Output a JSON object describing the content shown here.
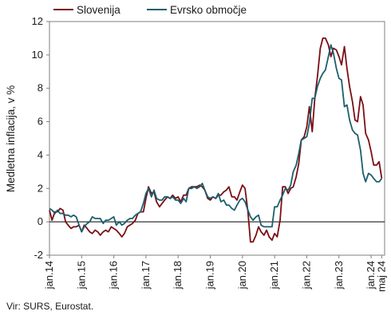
{
  "chart_data": {
    "type": "line",
    "ylabel": "Medletna inflacija, v %",
    "ylim": [
      -2,
      12
    ],
    "yticks": [
      -2,
      0,
      2,
      4,
      6,
      8,
      10,
      12
    ],
    "xlim": [
      2014.0,
      2024.42
    ],
    "xticks": [
      {
        "label": "jan.14",
        "x": 2014.0
      },
      {
        "label": "jan.15",
        "x": 2015.0
      },
      {
        "label": "jan.16",
        "x": 2016.0
      },
      {
        "label": "jan.17",
        "x": 2017.0
      },
      {
        "label": "jan.18",
        "x": 2018.0
      },
      {
        "label": "jan.19",
        "x": 2019.0
      },
      {
        "label": "jan.20",
        "x": 2020.0
      },
      {
        "label": "jan.21",
        "x": 2021.0
      },
      {
        "label": "jan.22",
        "x": 2022.0
      },
      {
        "label": "jan.23",
        "x": 2023.0
      },
      {
        "label": "jan.24",
        "x": 2024.0
      },
      {
        "label": "maj 24",
        "x": 2024.33
      }
    ],
    "grid": false,
    "legend_position": "top",
    "colors": {
      "slovenija": "#7a0f14",
      "evro": "#1b5f6e",
      "zero_line": "#000000"
    },
    "series": [
      {
        "name": "Slovenija",
        "points": [
          [
            2014.0,
            0.7
          ],
          [
            2014.08,
            0.1
          ],
          [
            2014.17,
            0.6
          ],
          [
            2014.25,
            0.6
          ],
          [
            2014.33,
            0.8
          ],
          [
            2014.42,
            0.7
          ],
          [
            2014.5,
            0.0
          ],
          [
            2014.58,
            -0.2
          ],
          [
            2014.67,
            -0.4
          ],
          [
            2014.75,
            -0.3
          ],
          [
            2014.83,
            -0.3
          ],
          [
            2014.92,
            -0.2
          ],
          [
            2015.0,
            -0.6
          ],
          [
            2015.08,
            -0.2
          ],
          [
            2015.17,
            -0.4
          ],
          [
            2015.25,
            -0.6
          ],
          [
            2015.33,
            -0.7
          ],
          [
            2015.42,
            -0.5
          ],
          [
            2015.5,
            -0.6
          ],
          [
            2015.58,
            -0.8
          ],
          [
            2015.67,
            -0.6
          ],
          [
            2015.75,
            -0.5
          ],
          [
            2015.83,
            -0.6
          ],
          [
            2015.92,
            -0.3
          ],
          [
            2016.0,
            -0.4
          ],
          [
            2016.08,
            -0.5
          ],
          [
            2016.17,
            -0.7
          ],
          [
            2016.25,
            -0.9
          ],
          [
            2016.33,
            -0.7
          ],
          [
            2016.42,
            -0.3
          ],
          [
            2016.5,
            -0.2
          ],
          [
            2016.58,
            -0.1
          ],
          [
            2016.67,
            0.1
          ],
          [
            2016.75,
            0.5
          ],
          [
            2016.83,
            0.6
          ],
          [
            2016.92,
            0.6
          ],
          [
            2017.0,
            1.4
          ],
          [
            2017.08,
            2.1
          ],
          [
            2017.17,
            1.7
          ],
          [
            2017.25,
            1.8
          ],
          [
            2017.33,
            1.2
          ],
          [
            2017.42,
            0.9
          ],
          [
            2017.5,
            1.1
          ],
          [
            2017.58,
            1.3
          ],
          [
            2017.67,
            1.5
          ],
          [
            2017.75,
            1.4
          ],
          [
            2017.83,
            1.6
          ],
          [
            2017.92,
            1.4
          ],
          [
            2018.0,
            1.5
          ],
          [
            2018.08,
            1.2
          ],
          [
            2018.17,
            1.6
          ],
          [
            2018.25,
            1.6
          ],
          [
            2018.33,
            2.0
          ],
          [
            2018.42,
            2.1
          ],
          [
            2018.5,
            2.1
          ],
          [
            2018.58,
            2.1
          ],
          [
            2018.67,
            2.2
          ],
          [
            2018.75,
            2.1
          ],
          [
            2018.83,
            1.9
          ],
          [
            2018.92,
            1.4
          ],
          [
            2019.0,
            1.3
          ],
          [
            2019.08,
            1.5
          ],
          [
            2019.17,
            1.4
          ],
          [
            2019.25,
            1.6
          ],
          [
            2019.33,
            1.6
          ],
          [
            2019.42,
            1.8
          ],
          [
            2019.5,
            1.9
          ],
          [
            2019.58,
            2.1
          ],
          [
            2019.67,
            1.5
          ],
          [
            2019.75,
            1.5
          ],
          [
            2019.83,
            1.3
          ],
          [
            2019.92,
            1.8
          ],
          [
            2020.0,
            2.2
          ],
          [
            2020.08,
            2.0
          ],
          [
            2020.17,
            0.6
          ],
          [
            2020.25,
            -1.2
          ],
          [
            2020.33,
            -1.2
          ],
          [
            2020.42,
            -0.8
          ],
          [
            2020.5,
            -0.3
          ],
          [
            2020.58,
            -0.6
          ],
          [
            2020.67,
            -0.8
          ],
          [
            2020.75,
            -0.5
          ],
          [
            2020.83,
            -0.9
          ],
          [
            2020.92,
            -1.1
          ],
          [
            2021.0,
            -0.7
          ],
          [
            2021.08,
            -0.9
          ],
          [
            2021.17,
            0.1
          ],
          [
            2021.25,
            2.1
          ],
          [
            2021.33,
            2.1
          ],
          [
            2021.42,
            1.7
          ],
          [
            2021.5,
            2.0
          ],
          [
            2021.58,
            2.1
          ],
          [
            2021.67,
            2.7
          ],
          [
            2021.75,
            3.5
          ],
          [
            2021.83,
            4.9
          ],
          [
            2021.92,
            5.1
          ],
          [
            2022.0,
            5.7
          ],
          [
            2022.08,
            6.9
          ],
          [
            2022.17,
            5.4
          ],
          [
            2022.25,
            7.4
          ],
          [
            2022.33,
            8.7
          ],
          [
            2022.42,
            10.4
          ],
          [
            2022.5,
            11.0
          ],
          [
            2022.58,
            11.0
          ],
          [
            2022.67,
            10.6
          ],
          [
            2022.75,
            9.9
          ],
          [
            2022.83,
            10.4
          ],
          [
            2022.92,
            10.3
          ],
          [
            2023.0,
            9.9
          ],
          [
            2023.08,
            9.4
          ],
          [
            2023.17,
            10.5
          ],
          [
            2023.25,
            9.2
          ],
          [
            2023.33,
            8.1
          ],
          [
            2023.42,
            7.2
          ],
          [
            2023.5,
            6.1
          ],
          [
            2023.58,
            6.0
          ],
          [
            2023.67,
            7.5
          ],
          [
            2023.75,
            7.0
          ],
          [
            2023.83,
            5.3
          ],
          [
            2023.92,
            4.9
          ],
          [
            2024.0,
            4.2
          ],
          [
            2024.08,
            3.4
          ],
          [
            2024.17,
            3.4
          ],
          [
            2024.25,
            3.6
          ],
          [
            2024.33,
            2.6
          ]
        ]
      },
      {
        "name": "Evrsko območje",
        "points": [
          [
            2014.0,
            0.8
          ],
          [
            2014.08,
            0.7
          ],
          [
            2014.17,
            0.5
          ],
          [
            2014.25,
            0.7
          ],
          [
            2014.33,
            0.5
          ],
          [
            2014.42,
            0.5
          ],
          [
            2014.5,
            0.4
          ],
          [
            2014.58,
            0.4
          ],
          [
            2014.67,
            0.3
          ],
          [
            2014.75,
            0.4
          ],
          [
            2014.83,
            0.3
          ],
          [
            2014.92,
            -0.2
          ],
          [
            2015.0,
            -0.6
          ],
          [
            2015.08,
            -0.3
          ],
          [
            2015.17,
            -0.1
          ],
          [
            2015.25,
            0.0
          ],
          [
            2015.33,
            0.3
          ],
          [
            2015.42,
            0.2
          ],
          [
            2015.5,
            0.2
          ],
          [
            2015.58,
            0.2
          ],
          [
            2015.67,
            -0.1
          ],
          [
            2015.75,
            0.1
          ],
          [
            2015.83,
            0.1
          ],
          [
            2015.92,
            0.2
          ],
          [
            2016.0,
            0.3
          ],
          [
            2016.08,
            -0.2
          ],
          [
            2016.17,
            0.0
          ],
          [
            2016.25,
            -0.2
          ],
          [
            2016.33,
            -0.1
          ],
          [
            2016.42,
            0.1
          ],
          [
            2016.5,
            0.2
          ],
          [
            2016.58,
            0.2
          ],
          [
            2016.67,
            0.4
          ],
          [
            2016.75,
            0.5
          ],
          [
            2016.83,
            0.6
          ],
          [
            2016.92,
            1.1
          ],
          [
            2017.0,
            1.7
          ],
          [
            2017.08,
            2.0
          ],
          [
            2017.17,
            1.5
          ],
          [
            2017.25,
            1.9
          ],
          [
            2017.33,
            1.4
          ],
          [
            2017.42,
            1.3
          ],
          [
            2017.5,
            1.3
          ],
          [
            2017.58,
            1.5
          ],
          [
            2017.67,
            1.5
          ],
          [
            2017.75,
            1.4
          ],
          [
            2017.83,
            1.5
          ],
          [
            2017.92,
            1.3
          ],
          [
            2018.0,
            1.3
          ],
          [
            2018.08,
            1.1
          ],
          [
            2018.17,
            1.4
          ],
          [
            2018.25,
            1.2
          ],
          [
            2018.33,
            2.0
          ],
          [
            2018.42,
            2.0
          ],
          [
            2018.5,
            2.1
          ],
          [
            2018.58,
            2.0
          ],
          [
            2018.67,
            2.1
          ],
          [
            2018.75,
            2.3
          ],
          [
            2018.83,
            1.9
          ],
          [
            2018.92,
            1.5
          ],
          [
            2019.0,
            1.4
          ],
          [
            2019.08,
            1.5
          ],
          [
            2019.17,
            1.4
          ],
          [
            2019.25,
            1.7
          ],
          [
            2019.33,
            1.2
          ],
          [
            2019.42,
            1.3
          ],
          [
            2019.5,
            1.0
          ],
          [
            2019.58,
            1.0
          ],
          [
            2019.67,
            0.8
          ],
          [
            2019.75,
            0.7
          ],
          [
            2019.83,
            1.0
          ],
          [
            2019.92,
            1.3
          ],
          [
            2020.0,
            1.4
          ],
          [
            2020.08,
            1.2
          ],
          [
            2020.17,
            0.7
          ],
          [
            2020.25,
            0.3
          ],
          [
            2020.33,
            0.1
          ],
          [
            2020.42,
            0.3
          ],
          [
            2020.5,
            0.4
          ],
          [
            2020.58,
            -0.2
          ],
          [
            2020.67,
            -0.3
          ],
          [
            2020.75,
            -0.3
          ],
          [
            2020.83,
            -0.3
          ],
          [
            2020.92,
            -0.3
          ],
          [
            2021.0,
            0.9
          ],
          [
            2021.08,
            0.9
          ],
          [
            2021.17,
            1.3
          ],
          [
            2021.25,
            1.6
          ],
          [
            2021.33,
            2.0
          ],
          [
            2021.42,
            1.9
          ],
          [
            2021.5,
            2.2
          ],
          [
            2021.58,
            3.0
          ],
          [
            2021.67,
            3.4
          ],
          [
            2021.75,
            4.1
          ],
          [
            2021.83,
            4.9
          ],
          [
            2021.92,
            5.0
          ],
          [
            2022.0,
            5.1
          ],
          [
            2022.08,
            5.9
          ],
          [
            2022.17,
            7.4
          ],
          [
            2022.25,
            7.4
          ],
          [
            2022.33,
            8.1
          ],
          [
            2022.42,
            8.6
          ],
          [
            2022.5,
            8.9
          ],
          [
            2022.58,
            9.1
          ],
          [
            2022.67,
            9.9
          ],
          [
            2022.75,
            10.6
          ],
          [
            2022.83,
            10.1
          ],
          [
            2022.92,
            9.2
          ],
          [
            2023.0,
            8.6
          ],
          [
            2023.08,
            8.5
          ],
          [
            2023.17,
            6.9
          ],
          [
            2023.25,
            7.0
          ],
          [
            2023.33,
            6.1
          ],
          [
            2023.42,
            5.5
          ],
          [
            2023.5,
            5.3
          ],
          [
            2023.58,
            5.2
          ],
          [
            2023.67,
            4.3
          ],
          [
            2023.75,
            2.9
          ],
          [
            2023.83,
            2.4
          ],
          [
            2023.92,
            2.9
          ],
          [
            2024.0,
            2.8
          ],
          [
            2024.08,
            2.6
          ],
          [
            2024.17,
            2.4
          ],
          [
            2024.25,
            2.4
          ],
          [
            2024.33,
            2.6
          ]
        ]
      }
    ]
  },
  "source": "Vir: SURS, Eurostat."
}
